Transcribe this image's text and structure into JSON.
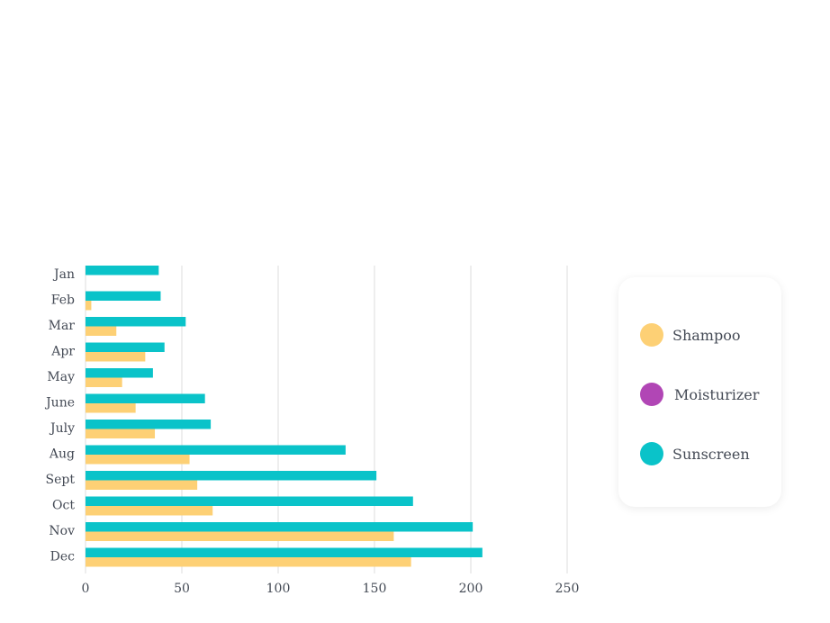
{
  "chart_data": {
    "type": "bar",
    "orientation": "horizontal",
    "categories": [
      "Jan",
      "Feb",
      "Mar",
      "Apr",
      "May",
      "June",
      "July",
      "Aug",
      "Sept",
      "Oct",
      "Nov",
      "Dec"
    ],
    "series": [
      {
        "name": "Shampoo",
        "color": "#fdd075",
        "values": [
          0,
          3,
          16,
          31,
          19,
          26,
          36,
          54,
          58,
          66,
          160,
          169
        ]
      },
      {
        "name": "Moisturizer",
        "color": "#b146b5",
        "values": [
          0,
          0,
          0,
          0,
          0,
          0,
          0,
          0,
          0,
          0,
          0,
          0
        ]
      },
      {
        "name": "Sunscreen",
        "color": "#0ac3c9",
        "values": [
          38,
          39,
          52,
          41,
          35,
          62,
          65,
          135,
          151,
          170,
          201,
          206
        ]
      }
    ],
    "xlim": [
      0,
      250
    ],
    "xticks": [
      0,
      50,
      100,
      150,
      200,
      250
    ],
    "grid": "vertical",
    "legend_position": "right"
  }
}
